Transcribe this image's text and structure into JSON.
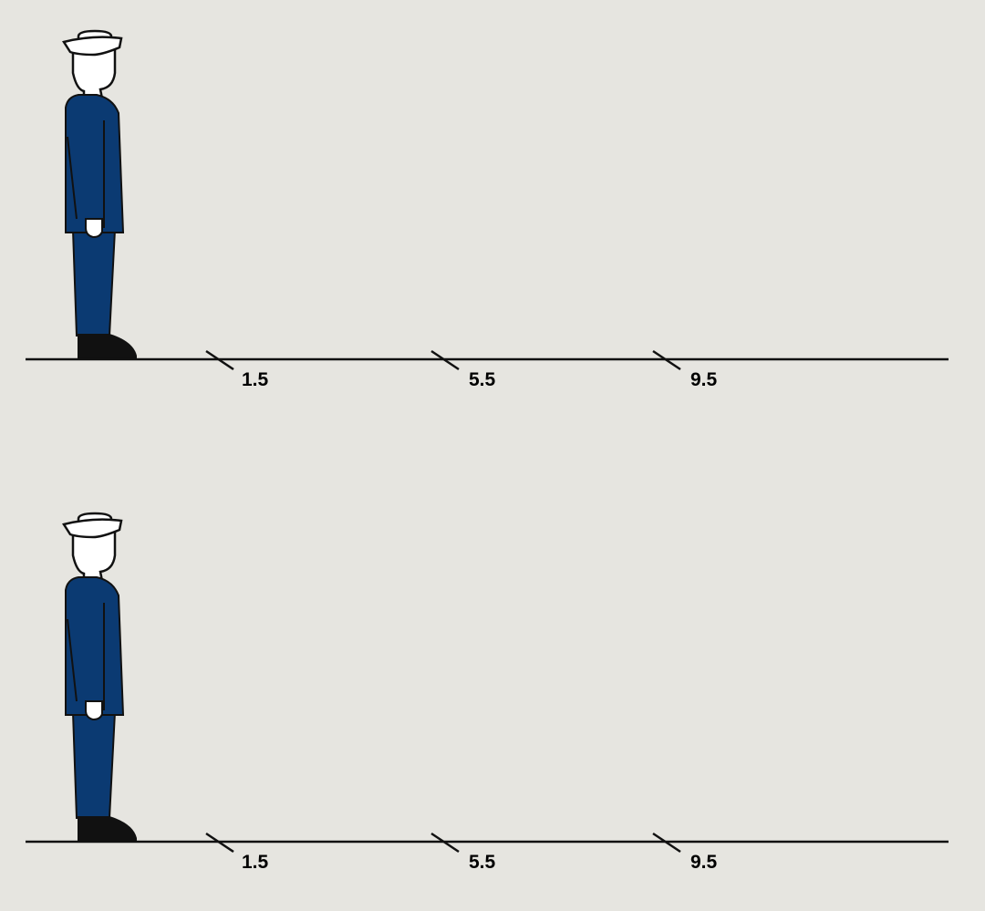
{
  "colors": {
    "background": "#e6e5e0",
    "uniform": "#0b3a72",
    "outline": "#111111",
    "cap": "#ffffff",
    "boot": "#111111",
    "line": "#111111"
  },
  "icons": {
    "figure": "sailor-icon",
    "cap": "sailor-cap-icon",
    "boot": "boot-icon"
  },
  "panels": [
    {
      "markers": [
        {
          "label": "1.5"
        },
        {
          "label": "5.5"
        },
        {
          "label": "9.5"
        }
      ]
    },
    {
      "markers": [
        {
          "label": "1.5"
        },
        {
          "label": "5.5"
        },
        {
          "label": "9.5"
        }
      ]
    }
  ]
}
